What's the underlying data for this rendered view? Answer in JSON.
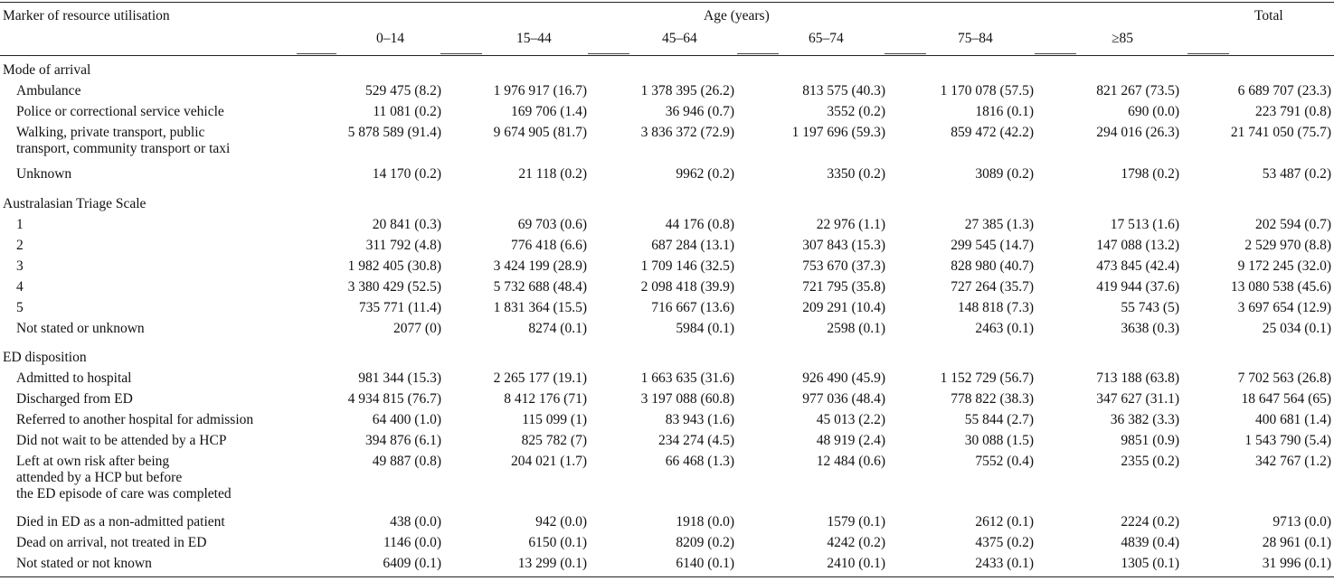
{
  "header": {
    "marker": "Marker of resource utilisation",
    "age_group": "Age (years)",
    "total": "Total",
    "ages": [
      "0–14",
      "15–44",
      "45–64",
      "65–74",
      "75–84",
      "≥85"
    ]
  },
  "rows": [
    {
      "label": "Mode of arrival",
      "section": true
    },
    {
      "label": "Ambulance",
      "values": [
        "529 475 (8.2)",
        "1 976 917 (16.7)",
        "1 378 395 (26.2)",
        "813 575 (40.3)",
        "1 170 078 (57.5)",
        "821 267 (73.5)",
        "6 689 707 (23.3)"
      ]
    },
    {
      "label": "Police or correctional service vehicle",
      "values": [
        "11 081 (0.2)",
        "169 706 (1.4)",
        "36 946 (0.7)",
        "3552 (0.2)",
        "1816 (0.1)",
        "690 (0.0)",
        "223 791 (0.8)"
      ]
    },
    {
      "label": "Walking, private transport, public",
      "label2": "transport, community transport or taxi",
      "values": [
        "5 878 589 (91.4)",
        "9 674 905 (81.7)",
        "3 836 372 (72.9)",
        "1 197 696 (59.3)",
        "859 472 (42.2)",
        "294 016 (26.3)",
        "21 741 050 (75.7)"
      ]
    },
    {
      "label": "Unknown",
      "values": [
        "14 170 (0.2)",
        "21 118 (0.2)",
        "9962 (0.2)",
        "3350 (0.2)",
        "3089 (0.2)",
        "1798 (0.2)",
        "53 487 (0.2)"
      ]
    },
    {
      "label": "Australasian Triage Scale",
      "section": true
    },
    {
      "label": "1",
      "values": [
        "20 841 (0.3)",
        "69 703 (0.6)",
        "44 176 (0.8)",
        "22 976 (1.1)",
        "27 385 (1.3)",
        "17 513 (1.6)",
        "202 594 (0.7)"
      ]
    },
    {
      "label": "2",
      "values": [
        "311 792 (4.8)",
        "776 418 (6.6)",
        "687 284 (13.1)",
        "307 843 (15.3)",
        "299 545 (14.7)",
        "147 088 (13.2)",
        "2 529 970 (8.8)"
      ]
    },
    {
      "label": "3",
      "values": [
        "1 982 405 (30.8)",
        "3 424 199 (28.9)",
        "1 709 146 (32.5)",
        "753 670 (37.3)",
        "828 980 (40.7)",
        "473 845 (42.4)",
        "9 172 245 (32.0)"
      ]
    },
    {
      "label": "4",
      "values": [
        "3 380 429 (52.5)",
        "5 732 688 (48.4)",
        "2 098 418 (39.9)",
        "721 795 (35.8)",
        "727 264 (35.7)",
        "419 944 (37.6)",
        "13 080 538 (45.6)"
      ]
    },
    {
      "label": "5",
      "values": [
        "735 771 (11.4)",
        "1 831 364 (15.5)",
        "716 667 (13.6)",
        "209 291 (10.4)",
        "148 818 (7.3)",
        "55 743 (5)",
        "3 697 654 (12.9)"
      ]
    },
    {
      "label": "Not stated or unknown",
      "values": [
        "2077 (0)",
        "8274 (0.1)",
        "5984 (0.1)",
        "2598 (0.1)",
        "2463 (0.1)",
        "3638 (0.3)",
        "25 034 (0.1)"
      ]
    },
    {
      "label": "ED disposition",
      "section": true
    },
    {
      "label": "Admitted to hospital",
      "values": [
        "981 344 (15.3)",
        "2 265 177 (19.1)",
        "1 663 635 (31.6)",
        "926 490 (45.9)",
        "1 152 729 (56.7)",
        "713 188 (63.8)",
        "7 702 563 (26.8)"
      ]
    },
    {
      "label": "Discharged from ED",
      "values": [
        "4 934 815 (76.7)",
        "8 412 176 (71)",
        "3 197 088 (60.8)",
        "977 036 (48.4)",
        "778 822 (38.3)",
        "347 627 (31.1)",
        "18 647 564 (65)"
      ]
    },
    {
      "label": "Referred to another hospital for admission",
      "values": [
        "64 400 (1.0)",
        "115 099 (1)",
        "83 943 (1.6)",
        "45 013 (2.2)",
        "55 844 (2.7)",
        "36 382 (3.3)",
        "400 681 (1.4)"
      ]
    },
    {
      "label": "Did not wait to be attended by a HCP",
      "values": [
        "394 876 (6.1)",
        "825 782 (7)",
        "234 274 (4.5)",
        "48 919 (2.4)",
        "30 088 (1.5)",
        "9851 (0.9)",
        "1 543 790 (5.4)"
      ]
    },
    {
      "label": "Left at own risk after being",
      "label2": "attended by a HCP but before",
      "label3": "the ED episode of care was completed",
      "values": [
        "49 887 (0.8)",
        "204 021 (1.7)",
        "66 468 (1.3)",
        "12 484 (0.6)",
        "7552 (0.4)",
        "2355 (0.2)",
        "342 767 (1.2)"
      ]
    },
    {
      "label": "Died in ED as a non-admitted patient",
      "values": [
        "438 (0.0)",
        "942 (0.0)",
        "1918 (0.0)",
        "1579 (0.1)",
        "2612 (0.1)",
        "2224 (0.2)",
        "9713 (0.0)"
      ]
    },
    {
      "label": "Dead on arrival, not treated in ED",
      "values": [
        "1146 (0.0)",
        "6150 (0.1)",
        "8209 (0.2)",
        "4242 (0.2)",
        "4375 (0.2)",
        "4839 (0.4)",
        "28 961 (0.1)"
      ]
    },
    {
      "label": "Not stated or not known",
      "values": [
        "6409 (0.1)",
        "13 299 (0.1)",
        "6140 (0.1)",
        "2410 (0.1)",
        "2433 (0.1)",
        "1305 (0.1)",
        "31 996 (0.1)"
      ]
    }
  ]
}
